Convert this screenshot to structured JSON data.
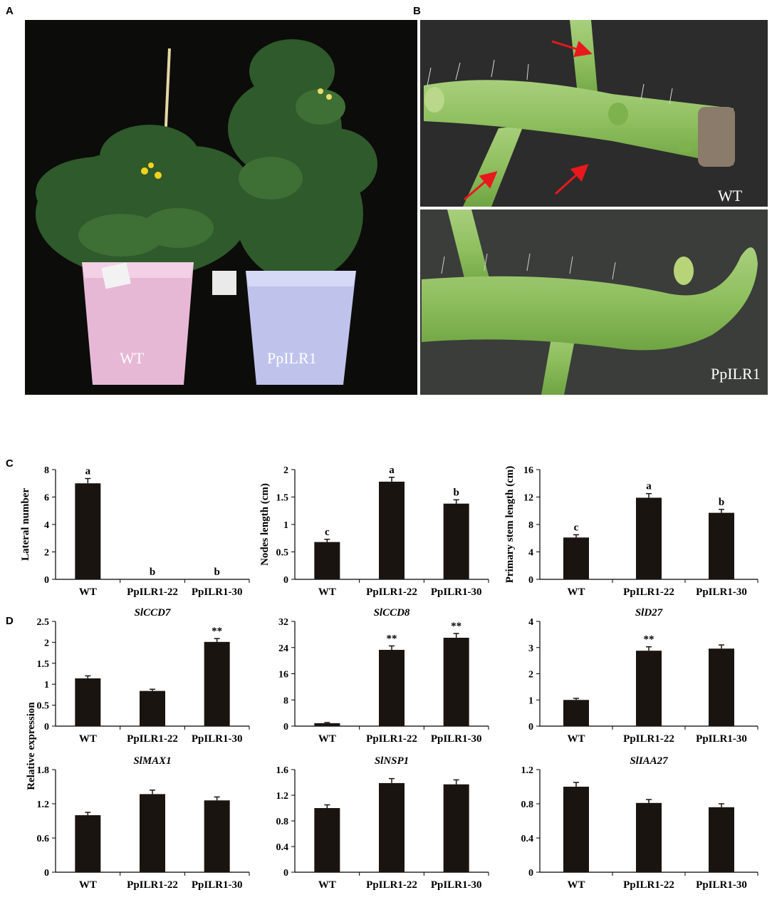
{
  "panel_labels": {
    "a": "A",
    "b": "B",
    "c": "C",
    "d": "D"
  },
  "photo_a": {
    "label_left": "WT",
    "label_right": "PpILR1"
  },
  "photo_b": {
    "label_top": "WT",
    "label_bottom": "PpILR1",
    "arrow_color": "#e8191c"
  },
  "shared_ylabel": "Relative expression",
  "bar_color": "#1a1410",
  "chart_data": [
    {
      "type": "bar",
      "panel": "C",
      "title": "",
      "ylabel": "Lateral number",
      "categories": [
        "WT",
        "PpILR1-22",
        "PpILR1-30"
      ],
      "values": [
        7.0,
        0,
        0
      ],
      "errors": [
        0.35,
        0,
        0
      ],
      "annotations": [
        "a",
        "b",
        "b"
      ],
      "ylim": [
        0,
        8
      ],
      "yticks": [
        "0",
        "2",
        "4",
        "6",
        "8"
      ]
    },
    {
      "type": "bar",
      "panel": "C",
      "title": "",
      "ylabel": "Nodes length (cm)",
      "categories": [
        "WT",
        "PpILR1-22",
        "PpILR1-30"
      ],
      "values": [
        0.68,
        1.78,
        1.38
      ],
      "errors": [
        0.05,
        0.08,
        0.07
      ],
      "annotations": [
        "c",
        "a",
        "b"
      ],
      "ylim": [
        0,
        2
      ],
      "yticks": [
        "0",
        "0.5",
        "1",
        "1.5",
        "2"
      ]
    },
    {
      "type": "bar",
      "panel": "C",
      "title": "",
      "ylabel": "Primary stem length (cm)",
      "categories": [
        "WT",
        "PpILR1-22",
        "PpILR1-30"
      ],
      "values": [
        6.1,
        11.9,
        9.7
      ],
      "errors": [
        0.4,
        0.6,
        0.5
      ],
      "annotations": [
        "c",
        "a",
        "b"
      ],
      "ylim": [
        0,
        16
      ],
      "yticks": [
        "0",
        "4",
        "8",
        "12",
        "16"
      ]
    },
    {
      "type": "bar",
      "panel": "D",
      "title": "SlCCD7",
      "ylabel": "",
      "categories": [
        "WT",
        "PpILR1-22",
        "PpILR1-30"
      ],
      "values": [
        1.14,
        0.84,
        2.01
      ],
      "errors": [
        0.06,
        0.04,
        0.08
      ],
      "annotations": [
        "",
        "",
        "**"
      ],
      "ylim": [
        0,
        2.5
      ],
      "yticks": [
        "0",
        "0.5",
        "1",
        "1.5",
        "2",
        "2.5"
      ]
    },
    {
      "type": "bar",
      "panel": "D",
      "title": "SlCCD8",
      "ylabel": "",
      "categories": [
        "WT",
        "PpILR1-22",
        "PpILR1-30"
      ],
      "values": [
        0.9,
        23.3,
        27.0
      ],
      "errors": [
        0.2,
        1.2,
        1.3
      ],
      "annotations": [
        "",
        "**",
        "**"
      ],
      "ylim": [
        0,
        32
      ],
      "yticks": [
        "0",
        "8",
        "16",
        "24",
        "32"
      ]
    },
    {
      "type": "bar",
      "panel": "D",
      "title": "SlD27",
      "ylabel": "",
      "categories": [
        "WT",
        "PpILR1-22",
        "PpILR1-30"
      ],
      "values": [
        1.0,
        2.88,
        2.96
      ],
      "errors": [
        0.06,
        0.15,
        0.14
      ],
      "annotations": [
        "",
        "**",
        ""
      ],
      "ylim": [
        0,
        4
      ],
      "yticks": [
        "0",
        "1",
        "2",
        "3",
        "4"
      ]
    },
    {
      "type": "bar",
      "panel": "D",
      "title": "SlMAX1",
      "ylabel": "",
      "categories": [
        "WT",
        "PpILR1-22",
        "PpILR1-30"
      ],
      "values": [
        1.0,
        1.37,
        1.26
      ],
      "errors": [
        0.05,
        0.07,
        0.06
      ],
      "annotations": [
        "",
        "",
        ""
      ],
      "ylim": [
        0,
        1.8
      ],
      "yticks": [
        "0",
        "0.6",
        "1.2",
        "1.8"
      ]
    },
    {
      "type": "bar",
      "panel": "D",
      "title": "SlNSP1",
      "ylabel": "",
      "categories": [
        "WT",
        "PpILR1-22",
        "PpILR1-30"
      ],
      "values": [
        1.0,
        1.39,
        1.37
      ],
      "errors": [
        0.05,
        0.07,
        0.07
      ],
      "annotations": [
        "",
        "",
        ""
      ],
      "ylim": [
        0,
        1.6
      ],
      "yticks": [
        "0",
        "0.4",
        "0.8",
        "1.2",
        "1.6"
      ]
    },
    {
      "type": "bar",
      "panel": "D",
      "title": "SlIAA27",
      "ylabel": "",
      "categories": [
        "WT",
        "PpILR1-22",
        "PpILR1-30"
      ],
      "values": [
        1.0,
        0.81,
        0.76
      ],
      "errors": [
        0.05,
        0.04,
        0.04
      ],
      "annotations": [
        "",
        "",
        ""
      ],
      "ylim": [
        0,
        1.2
      ],
      "yticks": [
        "0",
        "0.4",
        "0.8",
        "1.2"
      ]
    }
  ]
}
